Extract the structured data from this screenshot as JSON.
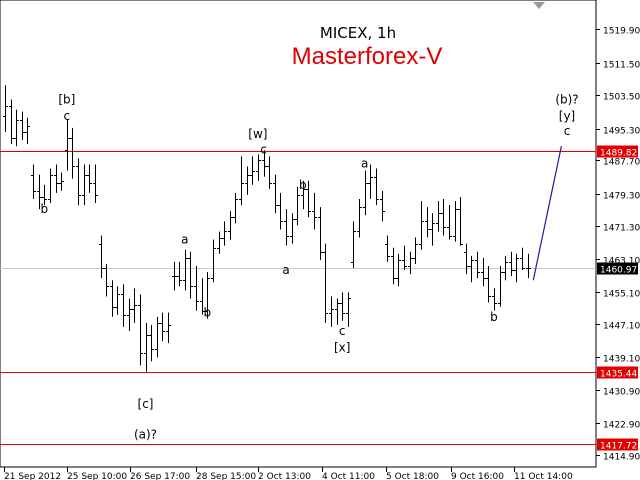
{
  "chart_data": {
    "type": "ohlc",
    "title": "MICEX, 1h",
    "subtitle": "Masterforex-V",
    "ylim": [
      1412,
      1527
    ],
    "price_axis_ticks": [
      "1519.90",
      "1511.50",
      "1503.50",
      "1495.30",
      "1487.70",
      "1479.30",
      "1471.30",
      "1463.10",
      "1455.10",
      "1447.10",
      "1439.10",
      "1430.90",
      "1422.90",
      "1414.90"
    ],
    "time_axis_labels": [
      "21 Sep 2012",
      "25 Sep 10:00",
      "26 Sep 17:00",
      "28 Sep 15:00",
      "2 Oct 13:00",
      "4 Oct 11:00",
      "5 Oct 18:00",
      "9 Oct 16:00",
      "11 Oct 14:00"
    ],
    "levels": [
      {
        "value": 1489.82,
        "label": "1489.82",
        "color": "#e00000"
      },
      {
        "value": 1435.44,
        "label": "1435.44",
        "color": "#e00000"
      },
      {
        "value": 1417.72,
        "label": "1417.72",
        "color": "#e00000"
      }
    ],
    "current_price": {
      "value": 1460.97,
      "label": "1460.97"
    },
    "wave_labels": [
      {
        "text": "[b]",
        "bar": 11,
        "price": 1501.5
      },
      {
        "text": "c",
        "bar": 11,
        "price": 1497.5
      },
      {
        "text": "b",
        "bar": 7,
        "price": 1474.5
      },
      {
        "text": "[c]",
        "bar": 25,
        "price": 1426.5
      },
      {
        "text": "(a)?",
        "bar": 25,
        "price": 1419.0
      },
      {
        "text": "a",
        "bar": 32,
        "price": 1467.0
      },
      {
        "text": "b",
        "bar": 36,
        "price": 1449.0
      },
      {
        "text": "[w]",
        "bar": 45,
        "price": 1493.0
      },
      {
        "text": "c",
        "bar": 46,
        "price": 1489.2
      },
      {
        "text": "b",
        "bar": 53,
        "price": 1480.5
      },
      {
        "text": "a",
        "bar": 50,
        "price": 1459.5
      },
      {
        "text": "c",
        "bar": 60,
        "price": 1444.5
      },
      {
        "text": "[x]",
        "bar": 60,
        "price": 1440.5
      },
      {
        "text": "a",
        "bar": 64,
        "price": 1485.8
      },
      {
        "text": "b",
        "bar": 87,
        "price": 1448.0
      },
      {
        "text": "(b)?",
        "bar": 100,
        "price": 1501.5
      },
      {
        "text": "[y]",
        "bar": 100,
        "price": 1497.5
      },
      {
        "text": "c",
        "bar": 100,
        "price": 1493.7
      }
    ],
    "projection": {
      "from_bar": 94,
      "from_price": 1458.0,
      "to_bar": 99,
      "to_price": 1491.0,
      "color": "#1a1aa0"
    },
    "bars": [
      [
        1498.5,
        1506.0,
        1494.5,
        1501.0
      ],
      [
        1501.0,
        1502.5,
        1491.5,
        1493.0
      ],
      [
        1493.0,
        1500.0,
        1491.0,
        1497.5
      ],
      [
        1497.5,
        1499.5,
        1492.5,
        1494.5
      ],
      [
        1494.5,
        1498.0,
        1491.5,
        1496.0
      ],
      [
        1484.0,
        1486.5,
        1478.0,
        1480.0
      ],
      [
        1480.0,
        1484.0,
        1475.5,
        1478.5
      ],
      [
        1478.5,
        1481.5,
        1476.5,
        1478.0
      ],
      [
        1478.0,
        1485.5,
        1477.0,
        1484.0
      ],
      [
        1484.0,
        1486.5,
        1479.5,
        1482.0
      ],
      [
        1482.0,
        1484.5,
        1480.0,
        1482.5
      ],
      [
        1490.0,
        1497.5,
        1485.0,
        1493.0
      ],
      [
        1493.0,
        1495.5,
        1483.0,
        1486.0
      ],
      [
        1486.0,
        1488.0,
        1476.5,
        1479.0
      ],
      [
        1479.0,
        1486.5,
        1476.5,
        1484.0
      ],
      [
        1484.0,
        1486.5,
        1479.5,
        1482.0
      ],
      [
        1482.0,
        1486.5,
        1477.0,
        1479.0
      ],
      [
        1467.0,
        1469.0,
        1458.5,
        1461.0
      ],
      [
        1461.0,
        1462.0,
        1454.0,
        1456.5
      ],
      [
        1456.5,
        1458.0,
        1449.0,
        1451.5
      ],
      [
        1451.5,
        1456.5,
        1449.5,
        1454.5
      ],
      [
        1454.5,
        1457.0,
        1446.5,
        1449.5
      ],
      [
        1449.5,
        1453.5,
        1445.5,
        1451.0
      ],
      [
        1451.0,
        1456.0,
        1447.5,
        1452.0
      ],
      [
        1452.0,
        1454.5,
        1437.0,
        1440.0
      ],
      [
        1440.0,
        1447.5,
        1435.5,
        1444.5
      ],
      [
        1444.5,
        1447.0,
        1438.0,
        1441.0
      ],
      [
        1441.0,
        1449.0,
        1439.0,
        1447.5
      ],
      [
        1447.5,
        1450.0,
        1443.0,
        1445.5
      ],
      [
        1445.5,
        1450.0,
        1442.5,
        1447.0
      ],
      [
        1459.0,
        1462.5,
        1455.5,
        1459.0
      ],
      [
        1459.0,
        1462.5,
        1456.5,
        1458.0
      ],
      [
        1458.0,
        1465.5,
        1455.5,
        1463.5
      ],
      [
        1463.5,
        1465.0,
        1453.5,
        1456.5
      ],
      [
        1456.5,
        1461.5,
        1450.5,
        1453.0
      ],
      [
        1453.0,
        1458.5,
        1449.5,
        1450.5
      ],
      [
        1450.5,
        1460.0,
        1448.5,
        1458.5
      ],
      [
        1458.5,
        1468.0,
        1457.5,
        1466.0
      ],
      [
        1466.0,
        1470.0,
        1464.5,
        1468.5
      ],
      [
        1468.5,
        1472.5,
        1466.5,
        1470.0
      ],
      [
        1470.0,
        1475.0,
        1468.0,
        1473.5
      ],
      [
        1473.5,
        1479.5,
        1472.0,
        1478.0
      ],
      [
        1478.0,
        1488.5,
        1476.5,
        1482.0
      ],
      [
        1482.0,
        1486.0,
        1479.0,
        1484.0
      ],
      [
        1484.0,
        1488.5,
        1481.5,
        1485.0
      ],
      [
        1485.0,
        1489.0,
        1482.5,
        1487.5
      ],
      [
        1487.5,
        1490.0,
        1483.5,
        1486.0
      ],
      [
        1486.0,
        1488.5,
        1480.5,
        1482.0
      ],
      [
        1482.0,
        1484.0,
        1474.5,
        1476.5
      ],
      [
        1476.5,
        1479.5,
        1470.5,
        1472.5
      ],
      [
        1472.5,
        1475.5,
        1466.5,
        1469.0
      ],
      [
        1469.0,
        1474.5,
        1467.0,
        1473.0
      ],
      [
        1473.0,
        1481.0,
        1471.5,
        1479.0
      ],
      [
        1479.0,
        1482.5,
        1475.5,
        1480.5
      ],
      [
        1480.5,
        1482.5,
        1473.5,
        1475.0
      ],
      [
        1475.0,
        1479.5,
        1470.5,
        1473.5
      ],
      [
        1473.5,
        1476.0,
        1463.0,
        1465.0
      ],
      [
        1465.0,
        1467.0,
        1447.5,
        1450.0
      ],
      [
        1450.0,
        1454.0,
        1446.5,
        1451.0
      ],
      [
        1451.0,
        1453.5,
        1447.0,
        1452.5
      ],
      [
        1452.5,
        1455.0,
        1448.0,
        1450.0
      ],
      [
        1450.0,
        1455.0,
        1446.5,
        1453.5
      ],
      [
        1462.5,
        1472.5,
        1461.0,
        1470.0
      ],
      [
        1470.0,
        1478.0,
        1468.5,
        1476.0
      ],
      [
        1476.0,
        1485.0,
        1474.0,
        1482.0
      ],
      [
        1482.0,
        1486.5,
        1478.0,
        1483.5
      ],
      [
        1483.5,
        1485.5,
        1476.5,
        1478.0
      ],
      [
        1478.0,
        1480.0,
        1472.5,
        1475.0
      ],
      [
        1467.0,
        1469.0,
        1462.5,
        1464.0
      ],
      [
        1464.0,
        1466.0,
        1457.0,
        1458.5
      ],
      [
        1458.5,
        1464.5,
        1456.5,
        1463.0
      ],
      [
        1463.0,
        1466.5,
        1460.5,
        1461.5
      ],
      [
        1461.5,
        1465.0,
        1459.5,
        1463.5
      ],
      [
        1463.5,
        1468.5,
        1462.0,
        1467.0
      ],
      [
        1467.0,
        1477.5,
        1465.5,
        1472.5
      ],
      [
        1472.5,
        1476.0,
        1468.5,
        1470.5
      ],
      [
        1470.5,
        1474.5,
        1466.5,
        1472.0
      ],
      [
        1472.0,
        1477.5,
        1470.0,
        1474.5
      ],
      [
        1474.5,
        1478.0,
        1469.0,
        1471.0
      ],
      [
        1471.0,
        1476.5,
        1468.0,
        1469.0
      ],
      [
        1469.0,
        1477.5,
        1467.5,
        1475.5
      ],
      [
        1475.5,
        1478.5,
        1466.5,
        1467.0
      ],
      [
        1465.0,
        1467.0,
        1459.5,
        1461.5
      ],
      [
        1461.5,
        1464.0,
        1457.5,
        1463.0
      ],
      [
        1463.0,
        1465.0,
        1458.5,
        1460.0
      ],
      [
        1460.0,
        1463.5,
        1456.5,
        1458.5
      ],
      [
        1458.5,
        1461.5,
        1452.5,
        1454.0
      ],
      [
        1454.0,
        1456.0,
        1450.5,
        1452.5
      ],
      [
        1452.5,
        1461.5,
        1451.5,
        1460.0
      ],
      [
        1460.0,
        1464.0,
        1458.0,
        1462.5
      ],
      [
        1462.5,
        1465.0,
        1459.0,
        1460.5
      ],
      [
        1460.5,
        1464.5,
        1457.5,
        1463.5
      ],
      [
        1463.5,
        1466.0,
        1460.5,
        1461.0
      ],
      [
        1461.0,
        1464.5,
        1458.5,
        1460.97
      ]
    ]
  },
  "ui": {
    "top_marker_color": "#9a9a9a",
    "grid_color": "#c8c8c8",
    "text_color": "#000000",
    "brand_color": "#e00000",
    "current_price_bg": "#000000",
    "level_bg": "#e00000"
  }
}
